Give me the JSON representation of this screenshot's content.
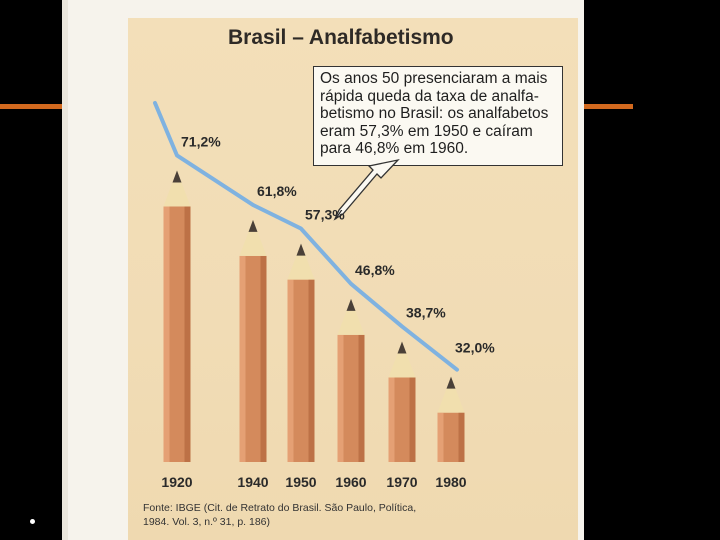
{
  "chart_data": {
    "type": "bar",
    "title": "Brasil – Analfabetismo",
    "categories": [
      "1920",
      "1940",
      "1950",
      "1960",
      "1970",
      "1980"
    ],
    "values": [
      71.2,
      61.8,
      57.3,
      46.8,
      38.7,
      32.0
    ],
    "value_labels": [
      "71,2%",
      "61,8%",
      "57,3%",
      "46,8%",
      "38,7%",
      "32,0%"
    ],
    "trend_line": true,
    "bar_color": "#d48a5c",
    "line_color": "#7fb2e0",
    "annotation": [
      "Os anos 50 presenciaram a mais",
      "rápida queda da taxa de analfa-",
      "betismo no Brasil: os analfabetos",
      "eram 57,3% em 1950 e caíram",
      "para 46,8% em 1960."
    ],
    "source": [
      "Fonte: IBGE (Cit. de Retrato do Brasil. São Paulo, Política,",
      "1984. Vol. 3, n.º 31, p. 186)"
    ]
  },
  "colors": {
    "accent_orange": "#d2691e",
    "slide_bg": "#000000"
  }
}
